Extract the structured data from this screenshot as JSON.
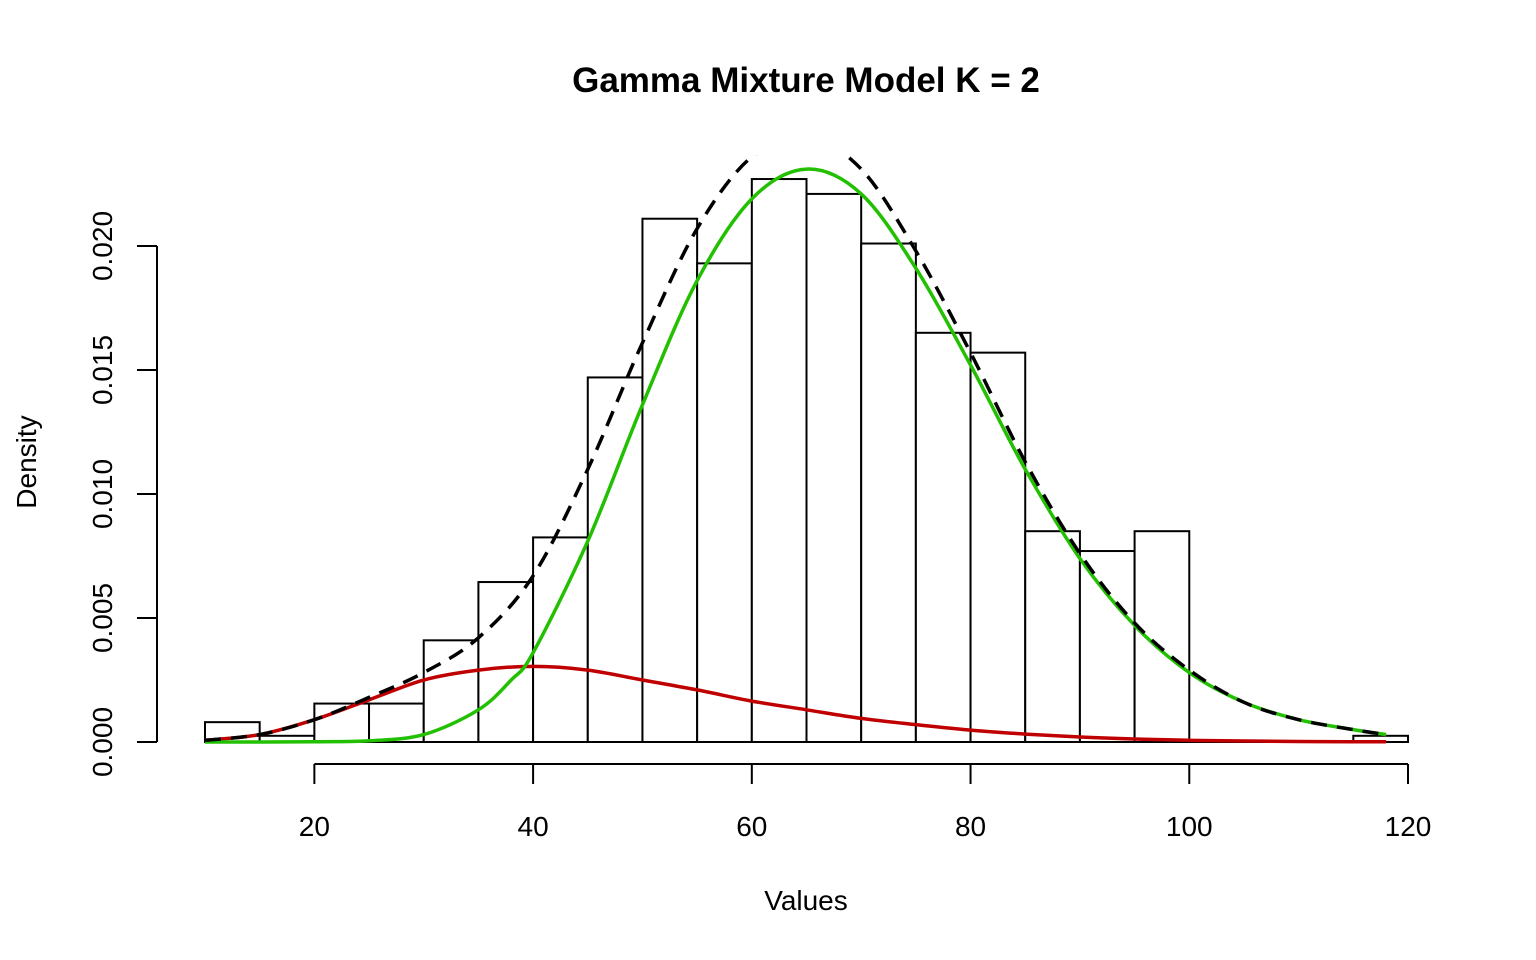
{
  "chart_data": {
    "type": "bar",
    "title": "Gamma Mixture Model K = 2",
    "xlabel": "Values",
    "ylabel": "Density",
    "xlim": [
      10,
      120
    ],
    "ylim": [
      0,
      0.0235
    ],
    "x_ticks": [
      20,
      40,
      60,
      80,
      100,
      120
    ],
    "x_tick_labels": [
      "20",
      "40",
      "60",
      "80",
      "100",
      "120"
    ],
    "y_ticks": [
      0,
      0.005,
      0.01,
      0.015,
      0.02
    ],
    "y_tick_labels": [
      "0.000",
      "0.005",
      "0.010",
      "0.015",
      "0.020"
    ],
    "grid": false,
    "histogram": {
      "bins": [
        {
          "x0": 10,
          "x1": 15,
          "density": 0.0008
        },
        {
          "x0": 15,
          "x1": 20,
          "density": 0.00025
        },
        {
          "x0": 20,
          "x1": 25,
          "density": 0.00155
        },
        {
          "x0": 25,
          "x1": 30,
          "density": 0.00155
        },
        {
          "x0": 30,
          "x1": 35,
          "density": 0.0041
        },
        {
          "x0": 35,
          "x1": 40,
          "density": 0.00645
        },
        {
          "x0": 40,
          "x1": 45,
          "density": 0.00825
        },
        {
          "x0": 45,
          "x1": 50,
          "density": 0.0147
        },
        {
          "x0": 50,
          "x1": 55,
          "density": 0.0211
        },
        {
          "x0": 55,
          "x1": 60,
          "density": 0.0193
        },
        {
          "x0": 60,
          "x1": 65,
          "density": 0.0227
        },
        {
          "x0": 65,
          "x1": 70,
          "density": 0.0221
        },
        {
          "x0": 70,
          "x1": 75,
          "density": 0.0201
        },
        {
          "x0": 75,
          "x1": 80,
          "density": 0.0165
        },
        {
          "x0": 80,
          "x1": 85,
          "density": 0.0157
        },
        {
          "x0": 85,
          "x1": 90,
          "density": 0.0085
        },
        {
          "x0": 90,
          "x1": 95,
          "density": 0.0077
        },
        {
          "x0": 95,
          "x1": 100,
          "density": 0.0085
        },
        {
          "x0": 100,
          "x1": 105,
          "density": 0
        },
        {
          "x0": 105,
          "x1": 110,
          "density": 0
        },
        {
          "x0": 110,
          "x1": 115,
          "density": 0
        },
        {
          "x0": 115,
          "x1": 120,
          "density": 0.00025
        }
      ],
      "fill": "#ffffff",
      "stroke": "#000000"
    },
    "series": [
      {
        "color": "#c00000",
        "style": "solid",
        "x": [
          10,
          15,
          20,
          25,
          30,
          35,
          40,
          45,
          50,
          55,
          60,
          65,
          70,
          75,
          80,
          85,
          90,
          95,
          100,
          105,
          110,
          115,
          118
        ],
        "values": [
          7e-05,
          0.0003,
          0.0009,
          0.0017,
          0.0025,
          0.0029,
          0.00305,
          0.0029,
          0.0025,
          0.0021,
          0.00165,
          0.0013,
          0.00095,
          0.0007,
          0.00048,
          0.00032,
          0.0002,
          0.00012,
          7e-05,
          4e-05,
          2e-05,
          1e-05,
          1e-05
        ]
      },
      {
        "color": "#22c000",
        "style": "solid",
        "x": [
          10,
          20,
          25,
          30,
          35,
          38,
          40,
          45,
          50,
          55,
          60,
          65,
          70,
          75,
          80,
          85,
          90,
          95,
          100,
          105,
          110,
          115,
          118
        ],
        "values": [
          0,
          1e-05,
          5e-05,
          0.0003,
          0.0013,
          0.0025,
          0.0036,
          0.0081,
          0.0136,
          0.0186,
          0.0219,
          0.0231,
          0.0221,
          0.0191,
          0.0152,
          0.011,
          0.0074,
          0.0047,
          0.0028,
          0.0016,
          0.0009,
          0.0005,
          0.0003
        ]
      },
      {
        "color": "#000000",
        "style": "dashed",
        "x": [
          10,
          15,
          20,
          25,
          30,
          35,
          40,
          45,
          50,
          55,
          60,
          65,
          70,
          75,
          80,
          85,
          90,
          95,
          100,
          105,
          110,
          115,
          118
        ],
        "values": [
          7e-05,
          0.0003,
          0.0009,
          0.0018,
          0.0028,
          0.0042,
          0.0067,
          0.011,
          0.0161,
          0.0207,
          0.0236,
          0.0244,
          0.0231,
          0.0198,
          0.0157,
          0.0113,
          0.0076,
          0.0048,
          0.0029,
          0.0016,
          0.0009,
          0.0005,
          0.0003
        ]
      }
    ]
  }
}
